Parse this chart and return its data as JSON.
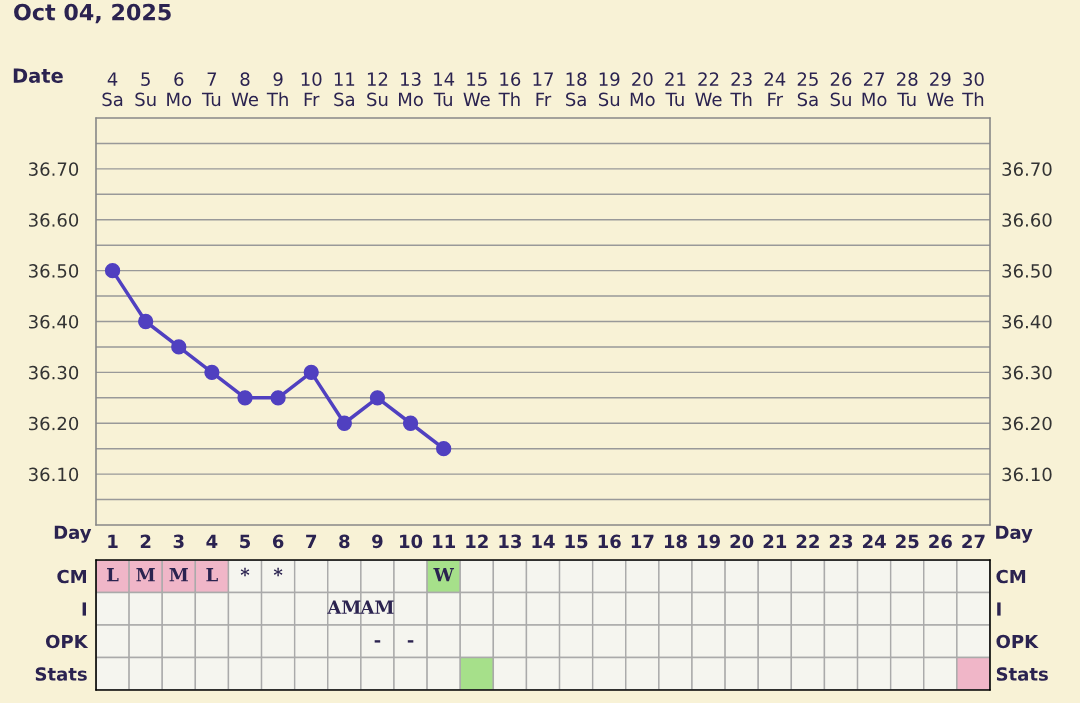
{
  "chart_data": [
    {
      "type": "line",
      "title": "Oct 04, 2025",
      "xlabel": "Date",
      "categories": [
        "4\nSa",
        "5\nSu",
        "6\nMo",
        "7\nTu",
        "8\nWe",
        "9\nTh",
        "10\nFr",
        "11\nSa",
        "12\nSu",
        "13\nMo",
        "14\nTu",
        "15\nWe",
        "16\nTh",
        "17\nFr",
        "18\nSa",
        "19\nSu",
        "20\nMo",
        "21\nTu",
        "22\nWe",
        "23\nTh",
        "24\nFr",
        "25\nSa",
        "26\nSu",
        "27\nMo",
        "28\nTu",
        "29\nWe",
        "30\nTh"
      ],
      "series": [
        {
          "color": "#5040c0",
          "values": [
            36.5,
            36.4,
            36.35,
            36.3,
            36.25,
            36.25,
            36.3,
            36.2,
            36.25,
            36.2,
            36.15,
            null,
            null,
            null,
            null,
            null,
            null,
            null,
            null,
            null,
            null,
            null,
            null,
            null,
            null,
            null,
            null
          ]
        }
      ],
      "marker": "circle",
      "line_style": "solid",
      "grid": true,
      "legend": false,
      "ylim": [
        36.0,
        36.8
      ],
      "yticks": [
        {
          "value": 36.05,
          "label": null
        },
        {
          "value": 36.1,
          "label": "36.10"
        },
        {
          "value": 36.15,
          "label": null
        },
        {
          "value": 36.2,
          "label": "36.20"
        },
        {
          "value": 36.25,
          "label": null
        },
        {
          "value": 36.3,
          "label": "36.30"
        },
        {
          "value": 36.35,
          "label": null
        },
        {
          "value": 36.4,
          "label": "36.40"
        },
        {
          "value": 36.45,
          "label": null
        },
        {
          "value": 36.5,
          "label": "36.50"
        },
        {
          "value": 36.55,
          "label": null
        },
        {
          "value": 36.6,
          "label": "36.60"
        },
        {
          "value": 36.65,
          "label": null
        },
        {
          "value": 36.7,
          "label": "36.70"
        },
        {
          "value": 36.75,
          "label": null
        }
      ],
      "y2lim": [
        36.0,
        36.8
      ],
      "y2ticks": [
        {
          "value": 36.1,
          "label": "36.10"
        },
        {
          "value": 36.2,
          "label": "36.20"
        },
        {
          "value": 36.3,
          "label": "36.30"
        },
        {
          "value": 36.4,
          "label": "36.40"
        },
        {
          "value": 36.5,
          "label": "36.50"
        },
        {
          "value": 36.6,
          "label": "36.60"
        },
        {
          "value": 36.7,
          "label": "36.70"
        }
      ]
    },
    {
      "type": "heatmap",
      "xlabel": "Day",
      "categories": [
        "1",
        "2",
        "3",
        "4",
        "5",
        "6",
        "7",
        "8",
        "9",
        "10",
        "11",
        "12",
        "13",
        "14",
        "15",
        "16",
        "17",
        "18",
        "19",
        "20",
        "21",
        "22",
        "23",
        "24",
        "25",
        "26",
        "27"
      ],
      "y_categories": [
        "CM",
        "I",
        "OPK",
        "Stats"
      ],
      "y2_categories": [
        "CM",
        "I",
        "OPK",
        "Stats"
      ],
      "cells": [
        [
          null,
          null,
          null,
          null,
          null,
          null,
          null,
          null,
          null,
          null,
          null,
          null,
          null,
          null,
          null,
          null,
          null,
          null,
          null,
          null,
          null,
          null,
          null,
          null,
          null,
          null,
          null
        ],
        [
          null,
          null,
          null,
          null,
          null,
          null,
          null,
          null,
          null,
          null,
          null,
          null,
          null,
          null,
          null,
          null,
          null,
          null,
          null,
          null,
          null,
          null,
          null,
          null,
          null,
          null,
          null
        ],
        [
          null,
          null,
          null,
          null,
          null,
          null,
          null,
          null,
          null,
          null,
          null,
          null,
          null,
          null,
          null,
          null,
          null,
          null,
          null,
          null,
          null,
          null,
          null,
          null,
          null,
          null,
          null
        ],
        [
          null,
          null,
          null,
          null,
          null,
          null,
          null,
          null,
          null,
          null,
          null,
          null,
          null,
          null,
          null,
          null,
          null,
          null,
          null,
          null,
          null,
          null,
          null,
          null,
          null,
          null,
          null
        ]
      ],
      "cell_labels": [
        [
          "L",
          "M",
          "M",
          "L",
          "*",
          "*",
          null,
          null,
          null,
          null,
          "W",
          null,
          null,
          null,
          null,
          null,
          null,
          null,
          null,
          null,
          null,
          null,
          null,
          null,
          null,
          null,
          null
        ],
        [
          null,
          null,
          null,
          null,
          null,
          null,
          null,
          "AM",
          "AM",
          null,
          null,
          null,
          null,
          null,
          null,
          null,
          null,
          null,
          null,
          null,
          null,
          null,
          null,
          null,
          null,
          null,
          null
        ],
        [
          null,
          null,
          null,
          null,
          null,
          null,
          null,
          null,
          "-",
          "-",
          null,
          null,
          null,
          null,
          null,
          null,
          null,
          null,
          null,
          null,
          null,
          null,
          null,
          null,
          null,
          null,
          null
        ],
        [
          null,
          null,
          null,
          null,
          null,
          null,
          null,
          null,
          null,
          null,
          null,
          null,
          null,
          null,
          null,
          null,
          null,
          null,
          null,
          null,
          null,
          null,
          null,
          null,
          null,
          null,
          null
        ]
      ],
      "colors": [
        [
          "#f0b6c8",
          "#f0b6c8",
          "#f0b6c8",
          "#f0b6c8",
          null,
          null,
          null,
          null,
          null,
          null,
          "#a6e08a",
          null,
          null,
          null,
          null,
          null,
          null,
          null,
          null,
          null,
          null,
          null,
          null,
          null,
          null,
          null,
          null
        ],
        [
          null,
          null,
          null,
          null,
          null,
          null,
          null,
          null,
          null,
          null,
          null,
          null,
          null,
          null,
          null,
          null,
          null,
          null,
          null,
          null,
          null,
          null,
          null,
          null,
          null,
          null,
          null
        ],
        [
          null,
          null,
          null,
          null,
          null,
          null,
          null,
          null,
          null,
          null,
          null,
          null,
          null,
          null,
          null,
          null,
          null,
          null,
          null,
          null,
          null,
          null,
          null,
          null,
          null,
          null,
          null
        ],
        [
          null,
          null,
          null,
          null,
          null,
          null,
          null,
          null,
          null,
          null,
          null,
          "#a6e08a",
          null,
          null,
          null,
          null,
          null,
          null,
          null,
          null,
          null,
          null,
          null,
          null,
          null,
          null,
          "#f0b6c8"
        ]
      ]
    }
  ]
}
